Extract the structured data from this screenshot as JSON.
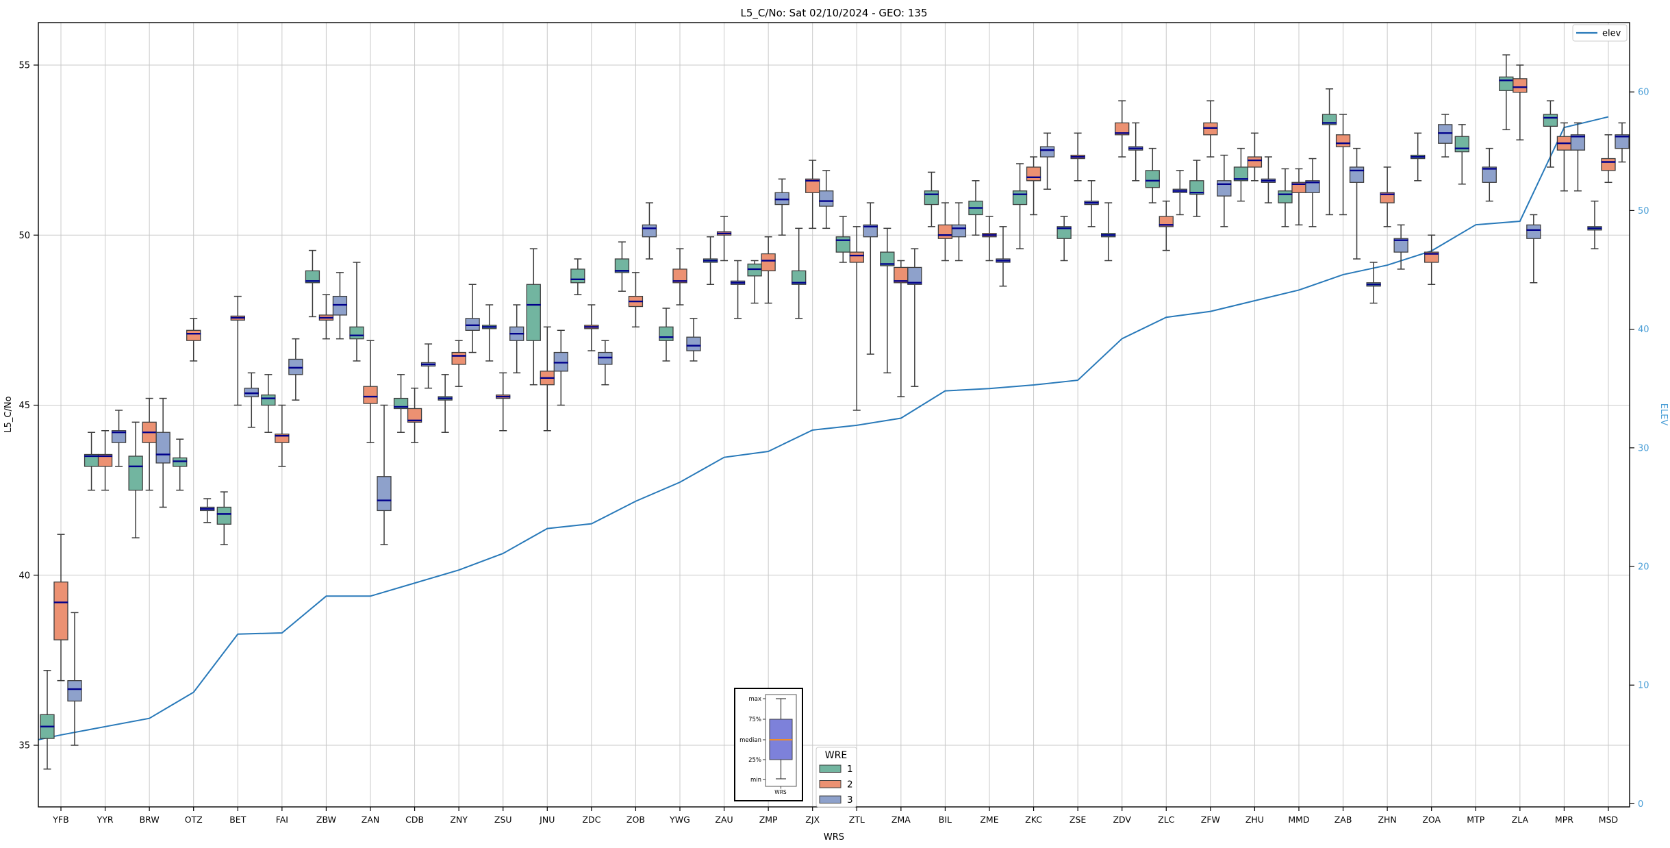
{
  "chart_data": {
    "type": "boxplot_with_line",
    "title": "L5_C/No: Sat 02/10/2024 - GEO: 135",
    "x_label": "WRS",
    "grid": true,
    "y_left": {
      "label": "L5_C/No",
      "ticks": [
        35,
        40,
        45,
        50,
        55
      ],
      "range": [
        33.2,
        56.3
      ]
    },
    "y_right": {
      "label": "ELEV",
      "ticks": [
        0,
        10,
        20,
        30,
        40,
        50,
        60
      ],
      "range": [
        -0.3,
        60.5
      ]
    },
    "box_format": [
      "whisker_low",
      "q1",
      "median",
      "q3",
      "whisker_high"
    ],
    "colors": {
      "wre1": "#72b5a0",
      "wre2": "#ec9172",
      "wre3": "#8ea1cb",
      "box_edge": "#3d3d3d",
      "whisker": "#3a3a3a",
      "median": "#00008b",
      "elev_line": "#2879b9",
      "right_axis_text": "#4a9ed6",
      "grid": "#c9c9c9"
    },
    "elev_legend": {
      "label": "elev",
      "position": "top-right"
    },
    "wre_legend": {
      "title": "WRE",
      "position": "bottom-center",
      "entries": [
        {
          "label": "1",
          "color": "#72b5a0"
        },
        {
          "label": "2",
          "color": "#ec9172"
        },
        {
          "label": "3",
          "color": "#8ea1cb"
        }
      ]
    },
    "inset": {
      "labels": {
        "max": "max",
        "p75": "75%",
        "median": "median",
        "p25": "25%",
        "min": "min"
      },
      "xlabel": "WRS",
      "box_color": "#7d81da",
      "median_color": "#f08c28"
    },
    "elev_left_edge": 5.4,
    "stations": [
      {
        "name": "YFB",
        "elev": 5.8,
        "boxes": {
          "1": [
            34.3,
            35.2,
            35.55,
            35.9,
            37.2
          ],
          "2": [
            36.9,
            38.1,
            39.2,
            39.8,
            41.2
          ],
          "3": [
            35.0,
            36.3,
            36.65,
            36.9,
            38.9
          ]
        }
      },
      {
        "name": "YYR",
        "elev": 6.5,
        "boxes": {
          "1": [
            42.5,
            43.2,
            43.5,
            43.55,
            44.2
          ],
          "2": [
            42.5,
            43.2,
            43.5,
            43.55,
            44.25
          ],
          "3": [
            43.2,
            43.9,
            44.2,
            44.25,
            44.85
          ]
        }
      },
      {
        "name": "BRW",
        "elev": 7.2,
        "boxes": {
          "1": [
            41.1,
            42.5,
            43.2,
            43.5,
            44.5
          ],
          "2": [
            42.5,
            43.9,
            44.2,
            44.5,
            45.2
          ],
          "3": [
            42.0,
            43.3,
            43.55,
            44.2,
            45.2
          ]
        }
      },
      {
        "name": "OTZ",
        "elev": 9.4,
        "boxes": {
          "1": [
            42.5,
            43.2,
            43.35,
            43.45,
            44.0
          ],
          "2": [
            46.3,
            46.9,
            47.1,
            47.2,
            47.55
          ],
          "3": [
            41.55,
            41.9,
            41.95,
            42.0,
            42.25
          ]
        }
      },
      {
        "name": "BET",
        "elev": 14.3,
        "boxes": {
          "1": [
            40.9,
            41.5,
            41.8,
            42.0,
            42.45
          ],
          "2": [
            45.0,
            47.5,
            47.57,
            47.62,
            48.2
          ],
          "3": [
            44.35,
            45.25,
            45.35,
            45.5,
            45.95
          ]
        }
      },
      {
        "name": "FAI",
        "elev": 14.4,
        "boxes": {
          "1": [
            44.2,
            45.0,
            45.2,
            45.3,
            45.9
          ],
          "2": [
            43.2,
            43.9,
            44.1,
            44.15,
            45.0
          ],
          "3": [
            45.15,
            45.9,
            46.1,
            46.35,
            46.95
          ]
        }
      },
      {
        "name": "ZBW",
        "elev": 17.5,
        "boxes": {
          "1": [
            47.6,
            48.6,
            48.65,
            48.95,
            49.55
          ],
          "2": [
            46.95,
            47.5,
            47.57,
            47.65,
            48.25
          ],
          "3": [
            46.95,
            47.65,
            47.95,
            48.2,
            48.9
          ]
        }
      },
      {
        "name": "ZAN",
        "elev": 17.5,
        "boxes": {
          "1": [
            46.3,
            46.95,
            47.05,
            47.3,
            49.2
          ],
          "2": [
            43.9,
            45.05,
            45.25,
            45.55,
            46.9
          ],
          "3": [
            40.9,
            41.9,
            42.2,
            42.9,
            45.0
          ]
        }
      },
      {
        "name": "CDB",
        "elev": 18.6,
        "boxes": {
          "1": [
            44.2,
            44.9,
            44.95,
            45.2,
            45.9
          ],
          "2": [
            43.9,
            44.5,
            44.55,
            44.9,
            45.5
          ],
          "3": [
            45.5,
            46.15,
            46.2,
            46.25,
            46.8
          ]
        }
      },
      {
        "name": "ZNY",
        "elev": 19.7,
        "boxes": {
          "1": [
            44.2,
            45.15,
            45.2,
            45.25,
            45.9
          ],
          "2": [
            45.55,
            46.2,
            46.45,
            46.55,
            46.9
          ],
          "3": [
            46.55,
            47.2,
            47.35,
            47.55,
            48.55
          ]
        }
      },
      {
        "name": "ZSU",
        "elev": 21.1,
        "boxes": {
          "1": [
            46.3,
            47.25,
            47.3,
            47.35,
            47.95
          ],
          "2": [
            44.25,
            45.2,
            45.25,
            45.3,
            45.95
          ],
          "3": [
            45.95,
            46.9,
            47.1,
            47.3,
            47.95
          ]
        }
      },
      {
        "name": "JNU",
        "elev": 23.2,
        "boxes": {
          "1": [
            45.6,
            46.9,
            47.95,
            48.55,
            49.6
          ],
          "2": [
            44.25,
            45.6,
            45.8,
            46.0,
            47.3
          ],
          "3": [
            45.0,
            46.0,
            46.25,
            46.55,
            47.2
          ]
        }
      },
      {
        "name": "ZDC",
        "elev": 23.6,
        "boxes": {
          "1": [
            48.25,
            48.6,
            48.7,
            49.0,
            49.3
          ],
          "2": [
            46.6,
            47.25,
            47.3,
            47.35,
            47.95
          ],
          "3": [
            45.6,
            46.2,
            46.4,
            46.55,
            46.9
          ]
        }
      },
      {
        "name": "ZOB",
        "elev": 25.5,
        "boxes": {
          "1": [
            48.35,
            48.9,
            48.95,
            49.3,
            49.8
          ],
          "2": [
            47.3,
            47.9,
            48.05,
            48.2,
            48.9
          ],
          "3": [
            49.3,
            49.95,
            50.2,
            50.3,
            50.95
          ]
        }
      },
      {
        "name": "YWG",
        "elev": 27.1,
        "boxes": {
          "1": [
            46.3,
            46.9,
            47.0,
            47.3,
            47.85
          ],
          "2": [
            47.95,
            48.6,
            48.65,
            49.0,
            49.6
          ],
          "3": [
            46.3,
            46.6,
            46.75,
            47.0,
            47.55
          ]
        }
      },
      {
        "name": "ZAU",
        "elev": 29.2,
        "boxes": {
          "1": [
            48.55,
            49.2,
            49.25,
            49.3,
            49.95
          ],
          "2": [
            49.25,
            50.0,
            50.05,
            50.1,
            50.55
          ],
          "3": [
            47.55,
            48.55,
            48.6,
            48.65,
            49.25
          ]
        }
      },
      {
        "name": "ZMP",
        "elev": 29.7,
        "boxes": {
          "1": [
            48.0,
            48.8,
            49.0,
            49.15,
            49.25
          ],
          "2": [
            48.0,
            48.95,
            49.25,
            49.45,
            49.95
          ],
          "3": [
            50.0,
            50.9,
            51.05,
            51.25,
            51.65
          ]
        }
      },
      {
        "name": "ZJX",
        "elev": 31.5,
        "boxes": {
          "1": [
            47.55,
            48.55,
            48.6,
            48.95,
            50.2
          ],
          "2": [
            50.2,
            51.25,
            51.6,
            51.65,
            52.2
          ],
          "3": [
            50.2,
            50.85,
            51.0,
            51.3,
            51.9
          ]
        }
      },
      {
        "name": "ZTL",
        "elev": 31.9,
        "boxes": {
          "1": [
            49.2,
            49.5,
            49.85,
            49.95,
            50.55
          ],
          "2": [
            44.85,
            49.2,
            49.4,
            49.5,
            50.25
          ],
          "3": [
            46.5,
            49.95,
            50.25,
            50.3,
            50.95
          ]
        }
      },
      {
        "name": "ZMA",
        "elev": 32.5,
        "boxes": {
          "1": [
            45.95,
            49.1,
            49.15,
            49.5,
            50.2
          ],
          "2": [
            45.25,
            48.6,
            48.65,
            49.05,
            49.25
          ],
          "3": [
            45.55,
            48.55,
            48.6,
            49.05,
            49.6
          ]
        }
      },
      {
        "name": "BIL",
        "elev": 34.8,
        "boxes": {
          "1": [
            50.25,
            50.9,
            51.2,
            51.3,
            51.85
          ],
          "2": [
            49.25,
            49.9,
            50.0,
            50.3,
            50.95
          ],
          "3": [
            49.25,
            49.95,
            50.2,
            50.3,
            50.95
          ]
        }
      },
      {
        "name": "ZME",
        "elev": 35.0,
        "boxes": {
          "1": [
            50.0,
            50.6,
            50.8,
            51.0,
            51.6
          ],
          "2": [
            49.25,
            49.95,
            50.0,
            50.05,
            50.55
          ],
          "3": [
            48.5,
            49.2,
            49.25,
            49.3,
            50.25
          ]
        }
      },
      {
        "name": "ZKC",
        "elev": 35.3,
        "boxes": {
          "1": [
            49.6,
            50.9,
            51.2,
            51.3,
            52.1
          ],
          "2": [
            50.6,
            51.6,
            51.7,
            52.0,
            52.3
          ],
          "3": [
            51.35,
            52.3,
            52.5,
            52.6,
            53.0
          ]
        }
      },
      {
        "name": "ZSE",
        "elev": 35.7,
        "boxes": {
          "1": [
            49.25,
            49.9,
            50.2,
            50.25,
            50.55
          ],
          "2": [
            51.6,
            52.25,
            52.3,
            52.35,
            53.0
          ],
          "3": [
            50.25,
            50.9,
            50.95,
            51.0,
            51.6
          ]
        }
      },
      {
        "name": "ZDV",
        "elev": 39.2,
        "boxes": {
          "1": [
            49.25,
            49.95,
            50.0,
            50.05,
            50.95
          ],
          "2": [
            52.3,
            52.95,
            53.0,
            53.3,
            53.95
          ],
          "3": [
            51.6,
            52.5,
            52.55,
            52.6,
            53.3
          ]
        }
      },
      {
        "name": "ZLC",
        "elev": 41.0,
        "boxes": {
          "1": [
            50.95,
            51.4,
            51.6,
            51.9,
            52.55
          ],
          "2": [
            49.55,
            50.25,
            50.3,
            50.55,
            51.0
          ],
          "3": [
            50.6,
            51.25,
            51.3,
            51.35,
            51.9
          ]
        }
      },
      {
        "name": "ZFW",
        "elev": 41.5,
        "boxes": {
          "1": [
            50.55,
            51.2,
            51.25,
            51.6,
            52.2
          ],
          "2": [
            52.3,
            52.95,
            53.15,
            53.3,
            53.95
          ],
          "3": [
            50.25,
            51.15,
            51.5,
            51.6,
            52.35
          ]
        }
      },
      {
        "name": "ZHU",
        "elev": 42.4,
        "boxes": {
          "1": [
            51.0,
            51.6,
            51.65,
            52.0,
            52.55
          ],
          "2": [
            51.6,
            52.0,
            52.2,
            52.3,
            53.0
          ],
          "3": [
            50.95,
            51.55,
            51.6,
            51.65,
            52.3
          ]
        }
      },
      {
        "name": "MMD",
        "elev": 43.3,
        "boxes": {
          "1": [
            50.25,
            50.95,
            51.2,
            51.3,
            51.95
          ],
          "2": [
            50.3,
            51.25,
            51.5,
            51.55,
            51.95
          ],
          "3": [
            50.25,
            51.25,
            51.55,
            51.6,
            52.25
          ]
        }
      },
      {
        "name": "ZAB",
        "elev": 44.6,
        "boxes": {
          "1": [
            50.6,
            53.25,
            53.3,
            53.55,
            54.3
          ],
          "2": [
            50.6,
            52.6,
            52.7,
            52.95,
            53.55
          ],
          "3": [
            49.3,
            51.55,
            51.9,
            52.0,
            52.55
          ]
        }
      },
      {
        "name": "ZHN",
        "elev": 45.4,
        "boxes": {
          "1": [
            48.0,
            48.5,
            48.55,
            48.6,
            49.2
          ],
          "2": [
            50.25,
            50.95,
            51.2,
            51.25,
            52.0
          ],
          "3": [
            49.0,
            49.5,
            49.85,
            49.9,
            50.3
          ]
        }
      },
      {
        "name": "ZOA",
        "elev": 46.6,
        "boxes": {
          "1": [
            51.6,
            52.25,
            52.3,
            52.35,
            53.0
          ],
          "2": [
            48.55,
            49.2,
            49.45,
            49.5,
            50.0
          ],
          "3": [
            52.3,
            52.7,
            53.0,
            53.25,
            53.55
          ]
        }
      },
      {
        "name": "MTP",
        "elev": 48.8,
        "boxes": {
          "1": [
            51.5,
            52.45,
            52.55,
            52.9,
            53.25
          ],
          "3": [
            51.0,
            51.55,
            51.95,
            52.0,
            52.55
          ]
        }
      },
      {
        "name": "ZLA",
        "elev": 49.1,
        "boxes": {
          "1": [
            53.1,
            54.25,
            54.55,
            54.65,
            55.3
          ],
          "2": [
            52.8,
            54.2,
            54.35,
            54.6,
            55.0
          ],
          "3": [
            48.6,
            49.9,
            50.15,
            50.3,
            50.6
          ]
        }
      },
      {
        "name": "MPR",
        "elev": 57.0,
        "boxes": {
          "1": [
            52.0,
            53.2,
            53.45,
            53.55,
            53.95
          ],
          "2": [
            51.3,
            52.5,
            52.7,
            52.9,
            53.3
          ],
          "3": [
            51.3,
            52.5,
            52.9,
            52.95,
            53.3
          ]
        }
      },
      {
        "name": "MSD",
        "elev": 57.9,
        "boxes": {
          "1": [
            49.6,
            50.15,
            50.2,
            50.25,
            51.0
          ],
          "2": [
            51.55,
            51.9,
            52.15,
            52.25,
            52.95
          ],
          "3": [
            52.15,
            52.55,
            52.9,
            52.95,
            53.3
          ]
        }
      }
    ]
  }
}
